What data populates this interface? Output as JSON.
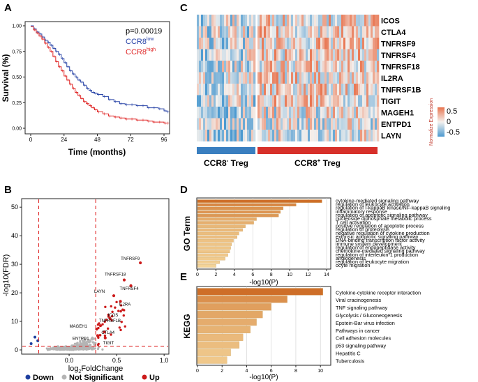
{
  "panel_labels": [
    "A",
    "B",
    "C",
    "D",
    "E"
  ],
  "panel_A": {
    "pvalue": "p=0.00019",
    "legend_low_base": "CCR8",
    "legend_low_sup": "low",
    "legend_high_base": "CCR8",
    "legend_high_sup": "high",
    "xlabel": "Time (months)",
    "ylabel": "Survival (%)",
    "colors": {
      "low": "#2b46a8",
      "high": "#e02828"
    }
  },
  "panel_B": {
    "ylabel": "-log10(FDR)",
    "xlabel_base": "log",
    "xlabel_sub": "2",
    "xlabel_tail": "FoldChange",
    "legend": [
      {
        "label": "Down",
        "color": "#1f3f9f"
      },
      {
        "label": "Not Significant",
        "color": "#b4b4b4"
      },
      {
        "label": "Up",
        "color": "#cc1a1a"
      }
    ]
  },
  "panel_C": {
    "genes": [
      "ICOS",
      "CTLA4",
      "TNFRSF9",
      "TNFRSF4",
      "TNFRSF18",
      "IL2RA",
      "TNFRSF1B",
      "TIGIT",
      "MAGEH1",
      "ENTPD1",
      "LAYN"
    ],
    "group_neg_base": "CCR8",
    "group_neg_sup": "-",
    "group_neg_tail": " Treg",
    "group_pos_base": "CCR8",
    "group_pos_sup": "+",
    "group_pos_tail": " Treg",
    "legend_title": "Normalize Expression",
    "legend_ticks": [
      "0.5",
      "0",
      "-0.5"
    ],
    "colors": {
      "neg_bar": "#3a7fc0",
      "pos_bar": "#d7302a",
      "high": "#e8744f",
      "low": "#4d9ad0"
    }
  },
  "panel_D": {
    "ylabel": "GO Term",
    "xlabel": "-log10(P)"
  },
  "panel_E": {
    "ylabel": "KEGG",
    "xlabel": "-log10(P)"
  },
  "chart_data": [
    {
      "type": "line",
      "panel": "A",
      "title": "",
      "xlabel": "Time (months)",
      "ylabel": "Survival (%)",
      "xlim": [
        0,
        98
      ],
      "ylim": [
        0,
        1
      ],
      "xticks": [
        "0",
        "24",
        "48",
        "72",
        "96"
      ],
      "yticks": [
        "0.00",
        "0.25",
        "0.50",
        "0.75",
        "1.00"
      ],
      "series": [
        {
          "name": "CCR8 low",
          "x": [
            0,
            2,
            4,
            6,
            8,
            10,
            12,
            14,
            16,
            18,
            20,
            22,
            24,
            26,
            28,
            30,
            32,
            34,
            36,
            38,
            40,
            42,
            44,
            46,
            48,
            52,
            56,
            60,
            64,
            68,
            72,
            76,
            80,
            84,
            88,
            92,
            96,
            98
          ],
          "y": [
            1.0,
            0.97,
            0.94,
            0.92,
            0.89,
            0.86,
            0.84,
            0.81,
            0.78,
            0.75,
            0.72,
            0.68,
            0.64,
            0.6,
            0.56,
            0.53,
            0.5,
            0.47,
            0.45,
            0.42,
            0.39,
            0.37,
            0.35,
            0.34,
            0.33,
            0.31,
            0.28,
            0.26,
            0.24,
            0.23,
            0.23,
            0.22,
            0.22,
            0.2,
            0.2,
            0.19,
            0.17,
            0.16
          ]
        },
        {
          "name": "CCR8 high",
          "x": [
            0,
            2,
            4,
            6,
            8,
            10,
            12,
            14,
            16,
            18,
            20,
            22,
            24,
            26,
            28,
            30,
            32,
            34,
            36,
            38,
            40,
            42,
            44,
            46,
            48,
            52,
            56,
            60,
            64,
            68,
            72,
            76,
            80,
            84,
            88,
            92,
            96,
            98
          ],
          "y": [
            0.99,
            0.96,
            0.93,
            0.9,
            0.87,
            0.83,
            0.79,
            0.75,
            0.7,
            0.65,
            0.6,
            0.56,
            0.51,
            0.47,
            0.43,
            0.39,
            0.35,
            0.32,
            0.29,
            0.26,
            0.24,
            0.22,
            0.2,
            0.18,
            0.16,
            0.14,
            0.12,
            0.11,
            0.1,
            0.09,
            0.09,
            0.08,
            0.08,
            0.07,
            0.06,
            0.06,
            0.05,
            0.05
          ]
        }
      ]
    },
    {
      "type": "scatter",
      "panel": "B",
      "xlabel": "log2FoldChange",
      "ylabel": "-log10(FDR)",
      "xlim": [
        -0.5,
        1.05
      ],
      "ylim": [
        0,
        52
      ],
      "xticks": [
        "0.0",
        "0.5",
        "1.0"
      ],
      "yticks": [
        "0",
        "10",
        "20",
        "30",
        "40",
        "50"
      ],
      "thresholds": {
        "x": [
          -0.32,
          0.28
        ],
        "y": 1.3
      },
      "labeled_genes": [
        {
          "gene": "TNFRSF9",
          "x": 0.75,
          "y": 30.5
        },
        {
          "gene": "TNFRSF18",
          "x": 0.58,
          "y": 24.5
        },
        {
          "gene": "TNFRSF4",
          "x": 0.65,
          "y": 22.5
        },
        {
          "gene": "LAYN",
          "x": 0.47,
          "y": 19.0
        },
        {
          "gene": "IL2RA",
          "x": 0.54,
          "y": 17.0
        },
        {
          "gene": "ICOS",
          "x": 0.43,
          "y": 11.0
        },
        {
          "gene": "TNFRSF1B",
          "x": 0.33,
          "y": 8.5
        },
        {
          "gene": "MAGEH1",
          "x": 0.29,
          "y": 7.3
        },
        {
          "gene": "CTLA4",
          "x": 0.37,
          "y": 6.3
        },
        {
          "gene": "ENTPD1",
          "x": 0.3,
          "y": 5.0
        },
        {
          "gene": "TIGIT",
          "x": 0.38,
          "y": 4.2
        }
      ]
    },
    {
      "type": "bar",
      "panel": "D",
      "orientation": "horizontal",
      "xlabel": "-log10(P)",
      "xlim": [
        0,
        14
      ],
      "xticks": [
        "0",
        "2",
        "4",
        "6",
        "8",
        "10",
        "12",
        "14"
      ],
      "categories": [
        "cytokine-mediated signaling pathway",
        "regulation of leukocyte activation",
        "regulation of I-kappaB kinase/NF-kappaB signaling",
        "inflammatory response",
        "regulation of apoptotic signaling pathway",
        "nucleoside diphosphate metabolic process",
        "T cell activation",
        "positive regulation of apoptotic process",
        "regulation of proteolysis",
        "negative regulation of cytokine production",
        "extrinsic apoptotic signaling pathway",
        "DNA-binding transcription factor activity",
        "immune system development",
        "regulation of endopeptidase activity",
        "chemokine-mediated signaling pathway",
        "regulation of interleukin-1 production",
        "angiogenesis",
        "regulation of leukocyte migration",
        "ocyte migration"
      ],
      "values": [
        13.5,
        10.7,
        9.3,
        9.0,
        8.8,
        6.4,
        6.1,
        5.2,
        4.9,
        4.5,
        4.3,
        3.9,
        3.7,
        3.6,
        3.5,
        3.3,
        3.0,
        2.4,
        2.0
      ]
    },
    {
      "type": "bar",
      "panel": "E",
      "orientation": "horizontal",
      "xlabel": "-log10(P)",
      "xlim": [
        0,
        10.5
      ],
      "xticks": [
        "0",
        "2",
        "4",
        "6",
        "8",
        "10"
      ],
      "categories": [
        "Cytokine-cytokine receptor interaction",
        "Viral cracinogenesis",
        "TNF signaling pathway",
        "Glycolysis / Gluconeogenesis",
        "Epstein-Bar virus infection",
        "Pathways in cancer",
        "Cell adhesion molecules",
        "p53 signaling pathway",
        "Hepatitis C",
        "Tuberculosis"
      ],
      "values": [
        10.2,
        7.3,
        6.0,
        5.3,
        4.8,
        4.3,
        3.7,
        3.4,
        2.7,
        2.4
      ]
    }
  ]
}
